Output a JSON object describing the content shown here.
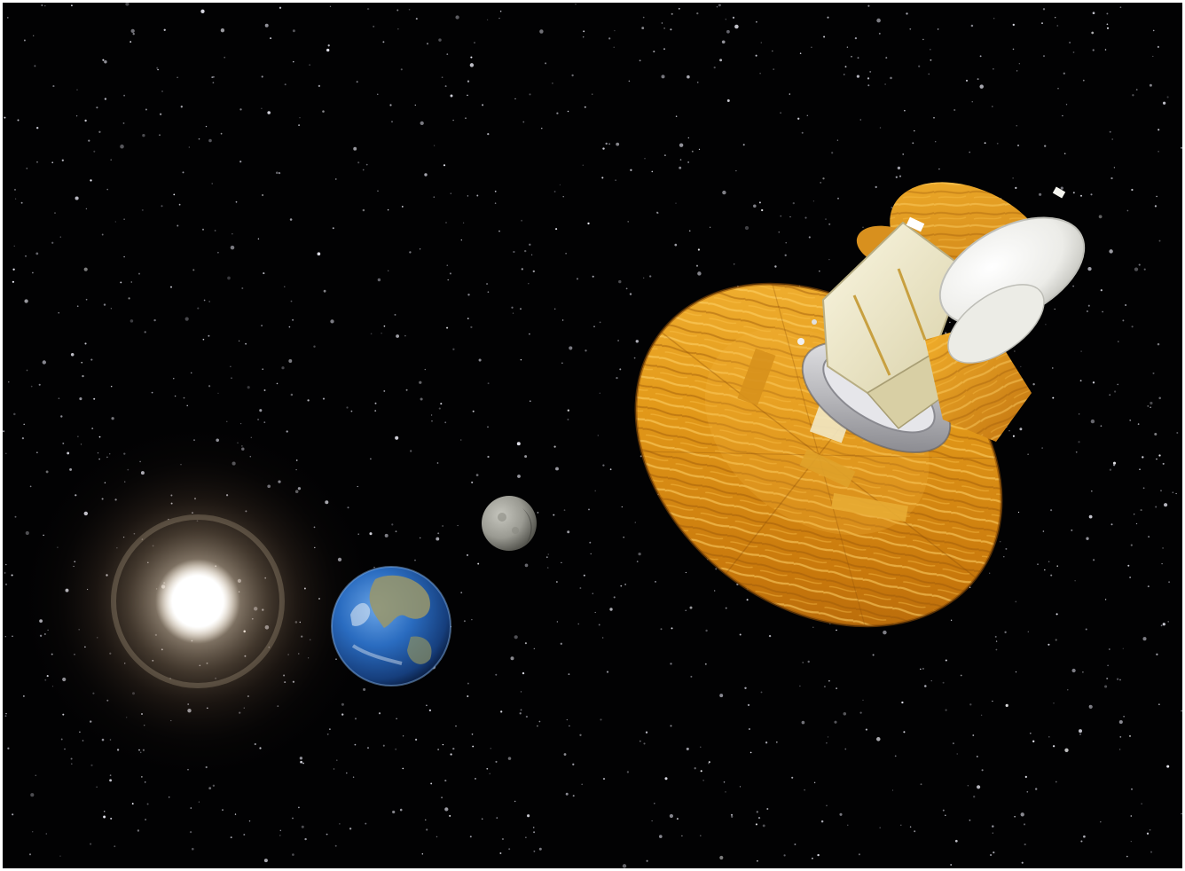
{
  "image": {
    "subject": "spacecraft-sun-earth-moon-scene",
    "colors": {
      "space": "#020203",
      "sun_core": "#ffffff",
      "sun_glow": "#b89a7a",
      "earth_ocean": "#2a6cc0",
      "earth_land": "#9a9668",
      "moon": "#9a9a92",
      "sunshield_gold": "#e39a1a",
      "sunshield_dark": "#a85e0a",
      "structure_cream": "#efe9c8",
      "reflector_white": "#f4f4f2",
      "ring_silver": "#c8c8cc",
      "frame": "#ffffff"
    },
    "icons": [
      "sun-icon",
      "earth-icon",
      "moon-icon",
      "spacecraft-icon",
      "star-field"
    ]
  }
}
